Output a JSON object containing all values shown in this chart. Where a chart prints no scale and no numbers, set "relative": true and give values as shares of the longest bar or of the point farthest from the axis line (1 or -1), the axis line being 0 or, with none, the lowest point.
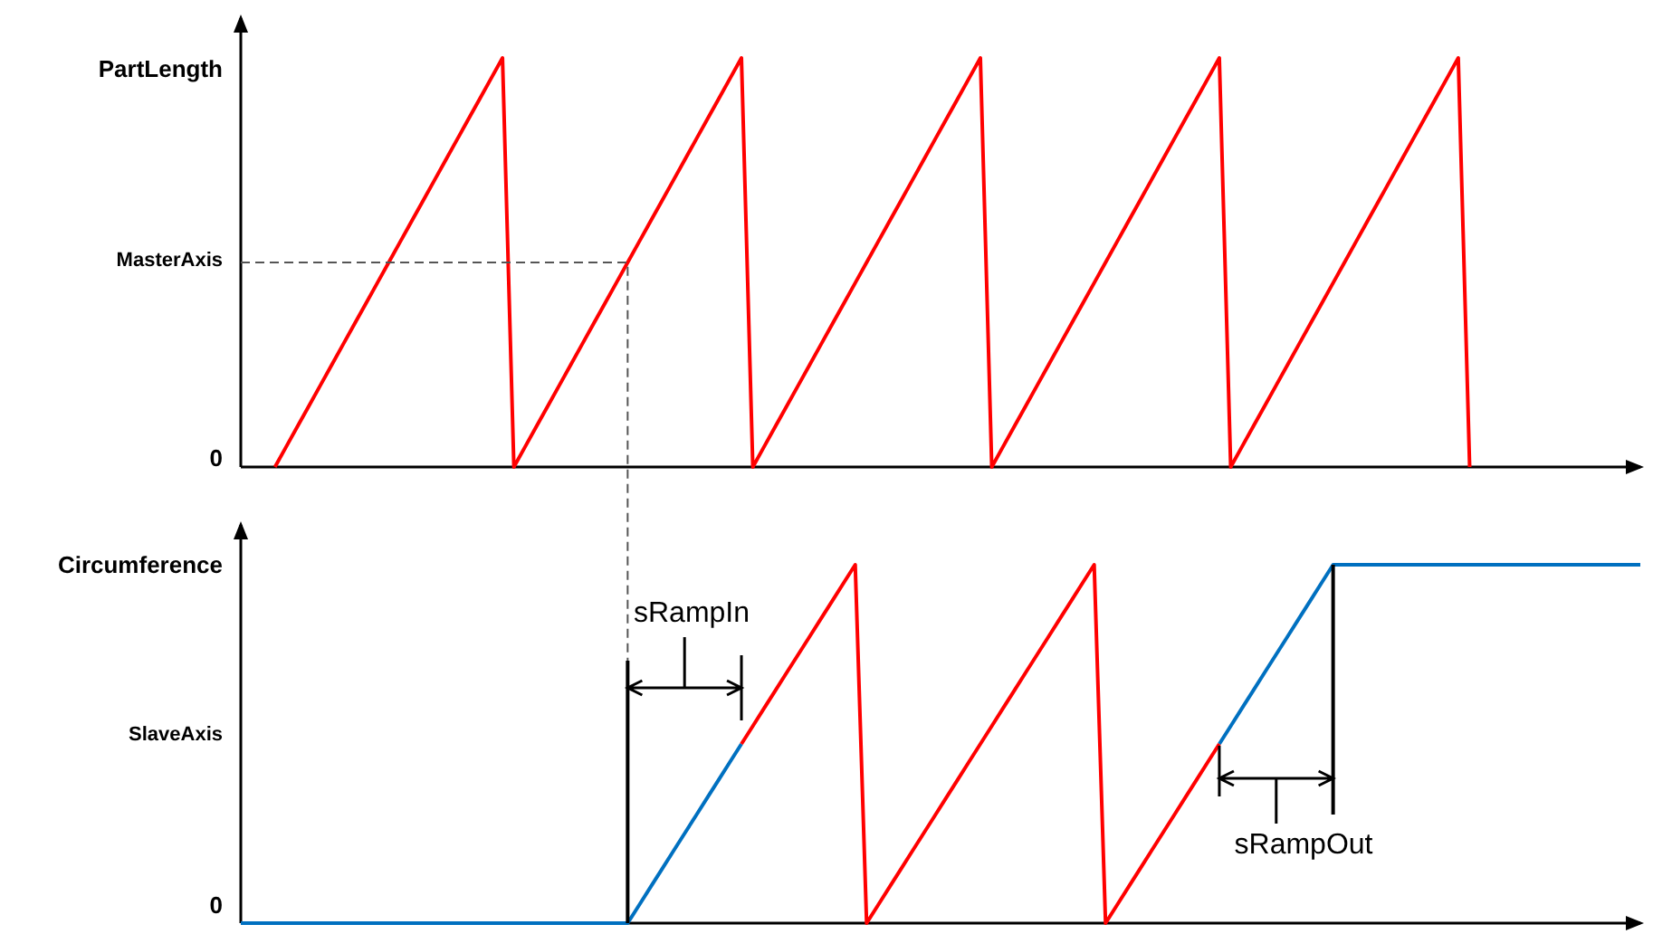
{
  "chart_data": [
    {
      "type": "line",
      "relative": true,
      "categories": [
        null,
        null,
        null,
        null,
        null,
        null,
        null,
        null,
        null,
        null,
        null,
        null,
        null,
        null,
        null,
        null,
        null,
        null,
        null,
        null,
        null,
        null,
        null,
        null,
        null,
        null,
        null,
        null,
        null,
        null,
        null,
        null,
        null,
        null,
        null,
        null,
        null,
        null,
        null,
        null,
        null,
        null,
        null,
        null,
        null,
        null,
        null,
        null,
        null,
        null,
        null,
        null,
        null,
        null,
        null,
        null,
        null,
        null,
        null,
        null,
        null,
        null,
        null,
        null,
        null,
        null,
        null,
        null,
        null,
        null,
        null,
        null,
        null,
        null,
        null,
        null,
        null,
        null,
        null,
        null,
        null,
        null,
        null,
        null,
        null,
        null,
        null,
        null,
        null,
        null,
        null,
        null,
        null,
        null,
        null,
        null,
        null,
        null,
        null,
        null,
        null,
        null,
        null,
        null,
        null,
        null,
        null,
        null,
        null,
        null,
        null,
        null,
        null,
        null,
        null,
        null,
        null,
        null,
        null,
        null,
        null,
        null,
        null,
        null
      ],
      "series": [
        {
          "color": "#ff0000",
          "values": [
            null,
            null,
            null,
            0,
            0.05,
            0.1,
            0.15,
            0.2,
            0.25,
            0.3,
            0.35,
            0.4,
            0.45,
            0.5,
            0.55,
            0.6,
            0.65,
            0.7,
            0.75,
            0.8,
            0.85,
            0.9,
            0.95,
            1,
            0,
            0.05,
            0.1,
            0.15,
            0.2,
            0.25,
            0.3,
            0.35,
            0.4,
            0.45,
            0.5,
            0.55,
            0.6,
            0.65,
            0.7,
            0.75,
            0.8,
            0.85,
            0.9,
            0.95,
            1,
            0,
            0.05,
            0.1,
            0.15,
            0.2,
            0.25,
            0.3,
            0.35,
            0.4,
            0.45,
            0.5,
            0.55,
            0.6,
            0.65,
            0.7,
            0.75,
            0.8,
            0.85,
            0.9,
            0.95,
            1,
            0,
            0.05,
            0.1,
            0.15,
            0.2,
            0.25,
            0.3,
            0.35,
            0.4,
            0.45,
            0.5,
            0.55,
            0.6,
            0.65,
            0.7,
            0.75,
            0.8,
            0.85,
            0.9,
            0.95,
            1,
            0,
            0.05,
            0.1,
            0.15,
            0.2,
            0.25,
            0.3,
            0.35,
            0.4,
            0.45,
            0.5,
            0.55,
            0.6,
            0.65,
            0.7,
            0.75,
            0.8,
            0.85,
            0.9,
            0.95,
            1,
            0,
            null,
            null,
            null,
            null,
            null,
            null,
            null,
            null,
            null,
            null,
            null,
            null,
            null,
            null,
            null
          ]
        }
      ],
      "annotations": [
        "0",
        "MasterAxis",
        "PartLength"
      ]
    },
    {
      "type": "line",
      "relative": true,
      "categories": [
        null,
        null,
        null,
        null,
        null,
        null,
        null,
        null,
        null,
        null,
        null,
        null,
        null,
        null,
        null,
        null,
        null,
        null,
        null,
        null,
        null,
        null,
        null,
        null,
        null,
        null,
        null,
        null,
        null,
        null,
        null,
        null,
        null,
        null,
        null,
        null,
        null,
        null,
        null,
        null,
        null,
        null,
        null,
        null,
        null,
        null,
        null,
        null,
        null,
        null,
        null,
        null,
        null,
        null,
        null,
        null,
        null,
        null,
        null,
        null,
        null,
        null,
        null,
        null,
        null,
        null,
        null,
        null,
        null,
        null,
        null,
        null,
        null,
        null,
        null,
        null,
        null,
        null,
        null,
        null,
        null,
        null,
        null,
        null,
        null,
        null,
        null,
        null,
        null,
        null,
        null,
        null,
        null,
        null,
        null,
        null,
        null,
        null,
        null,
        null,
        null,
        null,
        null,
        null,
        null,
        null,
        null,
        null,
        null,
        null,
        null,
        null,
        null,
        null,
        null,
        null,
        null,
        null,
        null,
        null,
        null,
        null,
        null,
        null
      ],
      "series": [
        {
          "color": "#0070c0",
          "values": [
            0,
            0,
            0,
            0,
            0,
            0,
            0,
            0,
            0,
            0,
            0,
            0,
            0,
            0,
            0,
            0,
            0,
            0,
            0,
            0,
            0,
            0,
            0,
            0,
            0,
            0,
            0,
            0,
            0,
            0,
            0,
            0,
            0,
            0,
            0,
            0.05,
            0.1,
            0.15,
            0.2,
            0.25,
            0.3,
            0.35,
            0.4,
            0.45,
            0.5,
            null,
            null,
            null,
            null,
            null,
            null,
            null,
            null,
            null,
            null,
            null,
            null,
            null,
            null,
            null,
            null,
            null,
            null,
            null,
            null,
            null,
            null,
            null,
            null,
            null,
            null,
            null,
            null,
            null,
            null,
            null,
            null,
            null,
            null,
            null,
            null,
            null,
            null,
            null,
            null,
            null,
            0.5,
            0.55,
            0.6,
            0.65,
            0.7,
            0.75,
            0.8,
            0.85,
            0.9,
            0.95,
            1,
            1,
            1,
            1,
            1,
            1,
            1,
            1,
            1,
            1,
            1,
            1,
            1,
            1,
            1,
            1,
            1,
            1,
            1,
            1,
            1,
            1,
            1,
            1,
            1,
            1,
            1,
            1
          ]
        },
        {
          "color": "#ff0000",
          "values": [
            null,
            null,
            null,
            null,
            null,
            null,
            null,
            null,
            null,
            null,
            null,
            null,
            null,
            null,
            null,
            null,
            null,
            null,
            null,
            null,
            null,
            null,
            null,
            null,
            null,
            null,
            null,
            null,
            null,
            null,
            null,
            null,
            null,
            null,
            null,
            null,
            null,
            null,
            null,
            null,
            null,
            null,
            null,
            null,
            0.5,
            0.55,
            0.6,
            0.65,
            0.7,
            0.75,
            0.8,
            0.85,
            0.9,
            0.95,
            1,
            0,
            0.05,
            0.1,
            0.15,
            0.2,
            0.25,
            0.3,
            0.35,
            0.4,
            0.45,
            0.5,
            0.55,
            0.6,
            0.65,
            0.7,
            0.75,
            0.8,
            0.85,
            0.9,
            0.95,
            1,
            0,
            0.05,
            0.1,
            0.15,
            0.2,
            0.25,
            0.3,
            0.35,
            0.4,
            0.45,
            0.5,
            null,
            null,
            null,
            null,
            null,
            null,
            null,
            null,
            null,
            null,
            null,
            null,
            null,
            null,
            null,
            null,
            null,
            null,
            null,
            null,
            null,
            null,
            null,
            null,
            null,
            null,
            null,
            null,
            null,
            null,
            null,
            null,
            null,
            null,
            null,
            null,
            null
          ]
        }
      ],
      "annotations": [
        "0",
        "SlaveAxis",
        "Circumference",
        "sRampIn",
        "sRampOut"
      ]
    }
  ]
}
